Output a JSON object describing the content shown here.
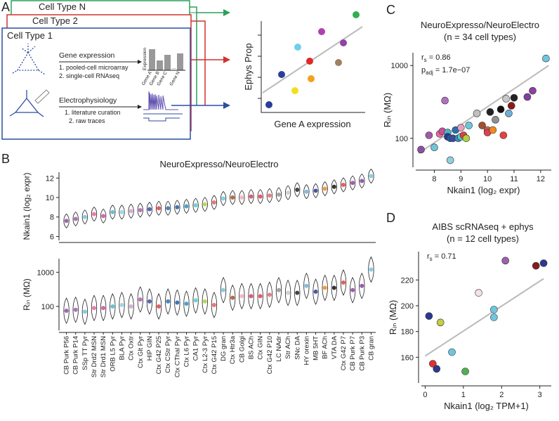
{
  "panel_labels": [
    "A",
    "B",
    "C",
    "D"
  ],
  "schematic": {
    "cell_types": [
      "Cell Type N",
      "Cell Type 2",
      "Cell Type 1"
    ],
    "gene_expression": {
      "title": "Gene expression",
      "steps": [
        "1. pooled-cell microarray",
        "2. single-cell RNAseq"
      ],
      "axis": "Expression",
      "genes": [
        "Gene A",
        "Gene B",
        "Gene C",
        "...",
        "Gene N"
      ]
    },
    "electrophysiology": {
      "title": "Electrophysiology",
      "steps": [
        "1. literature curation",
        "2. raw traces"
      ]
    },
    "plot": {
      "y_label": "Ephys Prop",
      "x_label": "Gene A expression"
    }
  },
  "chart_data": [
    {
      "type": "violin",
      "title": "NeuroExpresso/NeuroElectro",
      "y_label": "Nkain1 (log₂ expr)",
      "values": [
        7.6,
        7.8,
        8.0,
        8.3,
        8.1,
        8.5,
        8.5,
        8.6,
        8.7,
        8.8,
        8.9,
        8.9,
        9.0,
        9.1,
        9.2,
        9.3,
        9.5,
        9.9,
        10.0,
        10.0,
        10.1,
        10.1,
        10.2,
        10.3,
        10.5,
        10.8,
        10.6,
        10.7,
        10.9,
        11.1,
        11.3,
        11.5,
        11.7,
        12.2
      ],
      "colors": [
        "#8e4fa0",
        "#a05aa8",
        "#6fc6d8",
        "#e8669c",
        "#c94f9a",
        "#4db5c8",
        "#8fd0e0",
        "#c9a0d0",
        "#b05aa8",
        "#3a4aa0",
        "#e04040",
        "#2b6fb0",
        "#1e5ea8",
        "#3390c0",
        "#5ac8c8",
        "#b0d040",
        "#e06060",
        "#6fc6d8",
        "#a0522d",
        "#f0a8c0",
        "#d04060",
        "#e04050",
        "#e06a6a",
        "#909090",
        "#c8c8c8",
        "#222222",
        "#6fb0d8",
        "#2b3a90",
        "#f08a20",
        "#111111",
        "#e84040",
        "#8e3fa0",
        "#8040a0",
        "#6fc6e0"
      ],
      "ylim": [
        5.6,
        12.6
      ],
      "yticks": [
        6,
        8,
        10,
        12
      ]
    },
    {
      "type": "violin",
      "y_label": "Rᵢₙ (MΩ)",
      "categories": [
        "CB Purk P56",
        "CB Purk P14",
        "SSp TT Pyr",
        "Str Drd2 MSN",
        "Str Drd1 MSN",
        "ORB L5 Pyr",
        "BLA Pyr",
        "Ctx Oxtr",
        "Ctx Glt Pyr",
        "HIP GIN",
        "Ctx G42 P25",
        "Ctx CStr Pyr",
        "Ctx CThal Pyr",
        "Ctx L6 Pyr",
        "CA1 Pyr",
        "Ctx L2-3 Pyr",
        "Ctx G42 P15",
        "DG gran",
        "Ctx Htr3a",
        "CB Golgi",
        "BS ACh",
        "Ctx GIN",
        "Ctx G42 P10",
        "LC NAdr",
        "Str ACh",
        "SNc DA",
        "HY orexin",
        "MB 5HT",
        "BF ACh",
        "VTA DA",
        "Ctx G42 P7",
        "CB Purk P7",
        "CB Purk P3",
        "CB gran"
      ],
      "values": [
        75,
        80,
        70,
        90,
        90,
        100,
        110,
        100,
        160,
        140,
        100,
        140,
        130,
        120,
        150,
        140,
        110,
        300,
        180,
        200,
        200,
        200,
        220,
        300,
        250,
        250,
        400,
        270,
        350,
        350,
        500,
        300,
        400,
        1200
      ],
      "ylim": [
        20,
        2500
      ],
      "yticks": [
        100,
        1000
      ],
      "log_scale": true
    },
    {
      "type": "scatter",
      "title": "NeuroExpresso/NeuroElectro",
      "subtitle": "(n = 34 cell types)",
      "x_label": "Nkain1 (log₂ expr)",
      "y_label": "Rᵢₙ (MΩ)",
      "annotations": [
        {
          "main": "r",
          "sub": "s",
          "rest": " = 0.86"
        },
        {
          "main": "p",
          "sub": "adj",
          "rest": " = 1.7e−07"
        }
      ],
      "x": [
        7.5,
        7.8,
        8.0,
        8.2,
        8.3,
        8.4,
        8.5,
        8.5,
        8.6,
        8.6,
        8.7,
        8.8,
        8.9,
        9.0,
        9.0,
        9.1,
        9.2,
        9.3,
        9.6,
        9.8,
        10.0,
        10.0,
        10.1,
        10.2,
        10.3,
        10.5,
        10.6,
        10.7,
        10.8,
        10.9,
        11.0,
        11.5,
        11.7,
        12.2
      ],
      "y": [
        70,
        110,
        75,
        115,
        125,
        330,
        120,
        105,
        100,
        50,
        100,
        130,
        100,
        140,
        105,
        110,
        100,
        150,
        220,
        150,
        130,
        120,
        230,
        130,
        180,
        250,
        110,
        350,
        220,
        280,
        360,
        370,
        450,
        1250
      ],
      "colors": [
        "#8e4fa0",
        "#a05aa8",
        "#6fc6d8",
        "#e8669c",
        "#c94f9a",
        "#b070c0",
        "#4db5c8",
        "#2b3a90",
        "#1e5ea8",
        "#8fd0e0",
        "#3a4aa0",
        "#2b6fb0",
        "#3390c0",
        "#e8a0c0",
        "#5ac8c8",
        "#e04040",
        "#b0d040",
        "#6fc6d8",
        "#c0c0c0",
        "#a0522d",
        "#e06060",
        "#e04050",
        "#222222",
        "#f08a20",
        "#909090",
        "#111111",
        "#e84040",
        "#c8c8c8",
        "#6fb0d8",
        "#8b1a1a",
        "#222222",
        "#8040a0",
        "#8e3fa0",
        "#6fc6e0"
      ],
      "xlim": [
        7.3,
        12.4
      ],
      "xticks": [
        8,
        9,
        10,
        11,
        12
      ],
      "ylim": [
        40,
        1500
      ],
      "yticks": [
        100,
        1000
      ],
      "log_scale_y": true,
      "trend_line": {
        "x": [
          7.4,
          12.3
        ],
        "y": [
          62,
          1000
        ],
        "color": "#bbbbbb"
      }
    },
    {
      "type": "scatter",
      "title": "AIBS scRNAseq + ephys",
      "subtitle": "(n = 12 cell types)",
      "x_label": "Nkain1 (log₂ TPM+1)",
      "y_label": "Rᵢₙ (MΩ)",
      "annotations": [
        {
          "main": "r",
          "sub": "s",
          "rest": " = 0.71"
        }
      ],
      "x": [
        0.1,
        0.2,
        0.3,
        0.4,
        1.05,
        0.7,
        1.4,
        1.8,
        1.8,
        2.1,
        2.9,
        3.1
      ],
      "y": [
        192,
        155,
        151,
        187,
        149,
        164,
        210,
        197,
        191,
        235,
        231,
        233
      ],
      "colors": [
        "#2b3a90",
        "#e03030",
        "#2b3a90",
        "#c0d040",
        "#50b050",
        "#6fc6e0",
        "#f8e0e8",
        "#6fc6e0",
        "#6fc6e0",
        "#a060b0",
        "#8b1a1a",
        "#2b3a90"
      ],
      "xlim": [
        -0.1,
        3.3
      ],
      "xticks": [
        0,
        1,
        2,
        3
      ],
      "ylim": [
        140,
        242
      ],
      "yticks": [
        160,
        180,
        200,
        220
      ],
      "trend_line": {
        "x": [
          0.0,
          3.1
        ],
        "y": [
          161,
          221
        ],
        "color": "#bbbbbb"
      }
    }
  ]
}
